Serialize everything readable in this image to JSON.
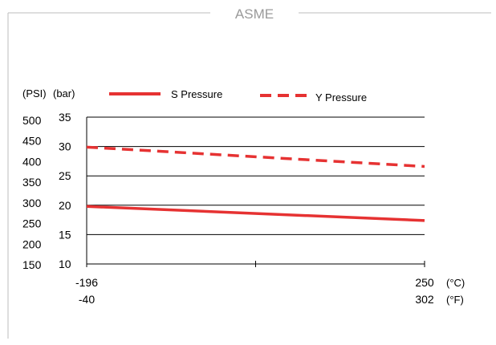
{
  "chart_data": {
    "type": "line",
    "title": "ASME",
    "x": [
      -196,
      250
    ],
    "x_tick_labels_c": [
      "-196",
      "250"
    ],
    "x_tick_labels_f": [
      "-40",
      "302"
    ],
    "x_unit_c": "(°C)",
    "x_unit_f": "(°F)",
    "xlim": [
      -196,
      250
    ],
    "ylim": [
      10,
      35
    ],
    "y_ticks_bar": [
      "35",
      "30",
      "25",
      "20",
      "15",
      "10"
    ],
    "y_ticks_psi": [
      "500",
      "450",
      "400",
      "350",
      "300",
      "250",
      "200",
      "150"
    ],
    "y_unit_psi": "(PSI)",
    "y_unit_bar": "(bar)",
    "grid": true,
    "legend_position": "top",
    "series": [
      {
        "name": "S Pressure",
        "style": "solid",
        "color": "#e63232",
        "values": [
          19.8,
          17.4
        ]
      },
      {
        "name": "Y Pressure",
        "style": "dashed",
        "color": "#e63232",
        "values": [
          29.9,
          26.6
        ]
      }
    ]
  }
}
